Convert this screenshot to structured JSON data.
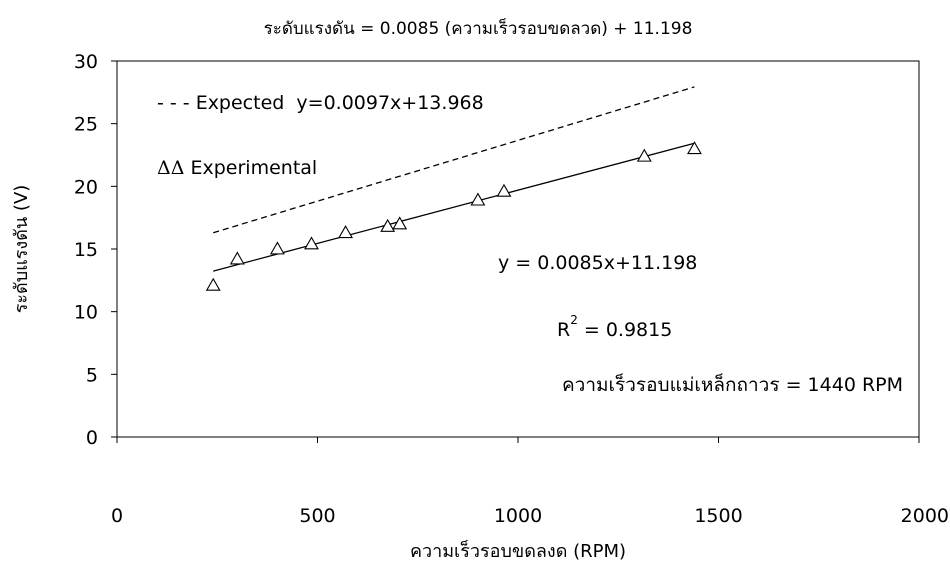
{
  "chart_data": {
    "type": "scatter",
    "title": "ระดับแรงดัน = 0.0085 (ความเร็วรอบขดลวด) + 11.198",
    "xlabel": "ความเร็วรอบขดลงด (RPM)",
    "ylabel": "ระดับแรงดัน (V)",
    "xlim": [
      0,
      2000
    ],
    "ylim": [
      0,
      30
    ],
    "x_ticks": [
      "0",
      "500",
      "1000",
      "1500",
      "2000"
    ],
    "y_ticks": [
      "0",
      "5",
      "10",
      "15",
      "20",
      "25",
      "30"
    ],
    "grid": false,
    "series": [
      {
        "name": "Experimental",
        "marker": "triangle",
        "x": [
          240,
          300,
          400,
          485,
          570,
          675,
          705,
          900,
          965,
          1315,
          1440
        ],
        "y": [
          12.1,
          14.2,
          15.0,
          15.4,
          16.3,
          16.8,
          17.0,
          18.9,
          19.6,
          22.4,
          23.0
        ]
      }
    ],
    "trendlines": [
      {
        "name": "Expected",
        "style": "dashed",
        "slope": 0.0097,
        "intercept": 13.968,
        "x_range": [
          240,
          1440
        ]
      },
      {
        "name": "Experimental fit",
        "style": "solid",
        "slope": 0.0085,
        "intercept": 11.198,
        "x_range": [
          240,
          1440
        ]
      }
    ],
    "legend": {
      "expected_label": "Expected  y=0.0097x+13.968",
      "experimental_symbol": "ΔΔ",
      "experimental_label": " Experimental"
    },
    "annotations": {
      "fit_equation": "y = 0.0085x+11.198",
      "r2_prefix": "R",
      "r2_exp": "2",
      "r2_value": " = 0.9815",
      "note": "ความเร็วรอบแม่เหล็กถาวร = 1440 RPM"
    }
  }
}
